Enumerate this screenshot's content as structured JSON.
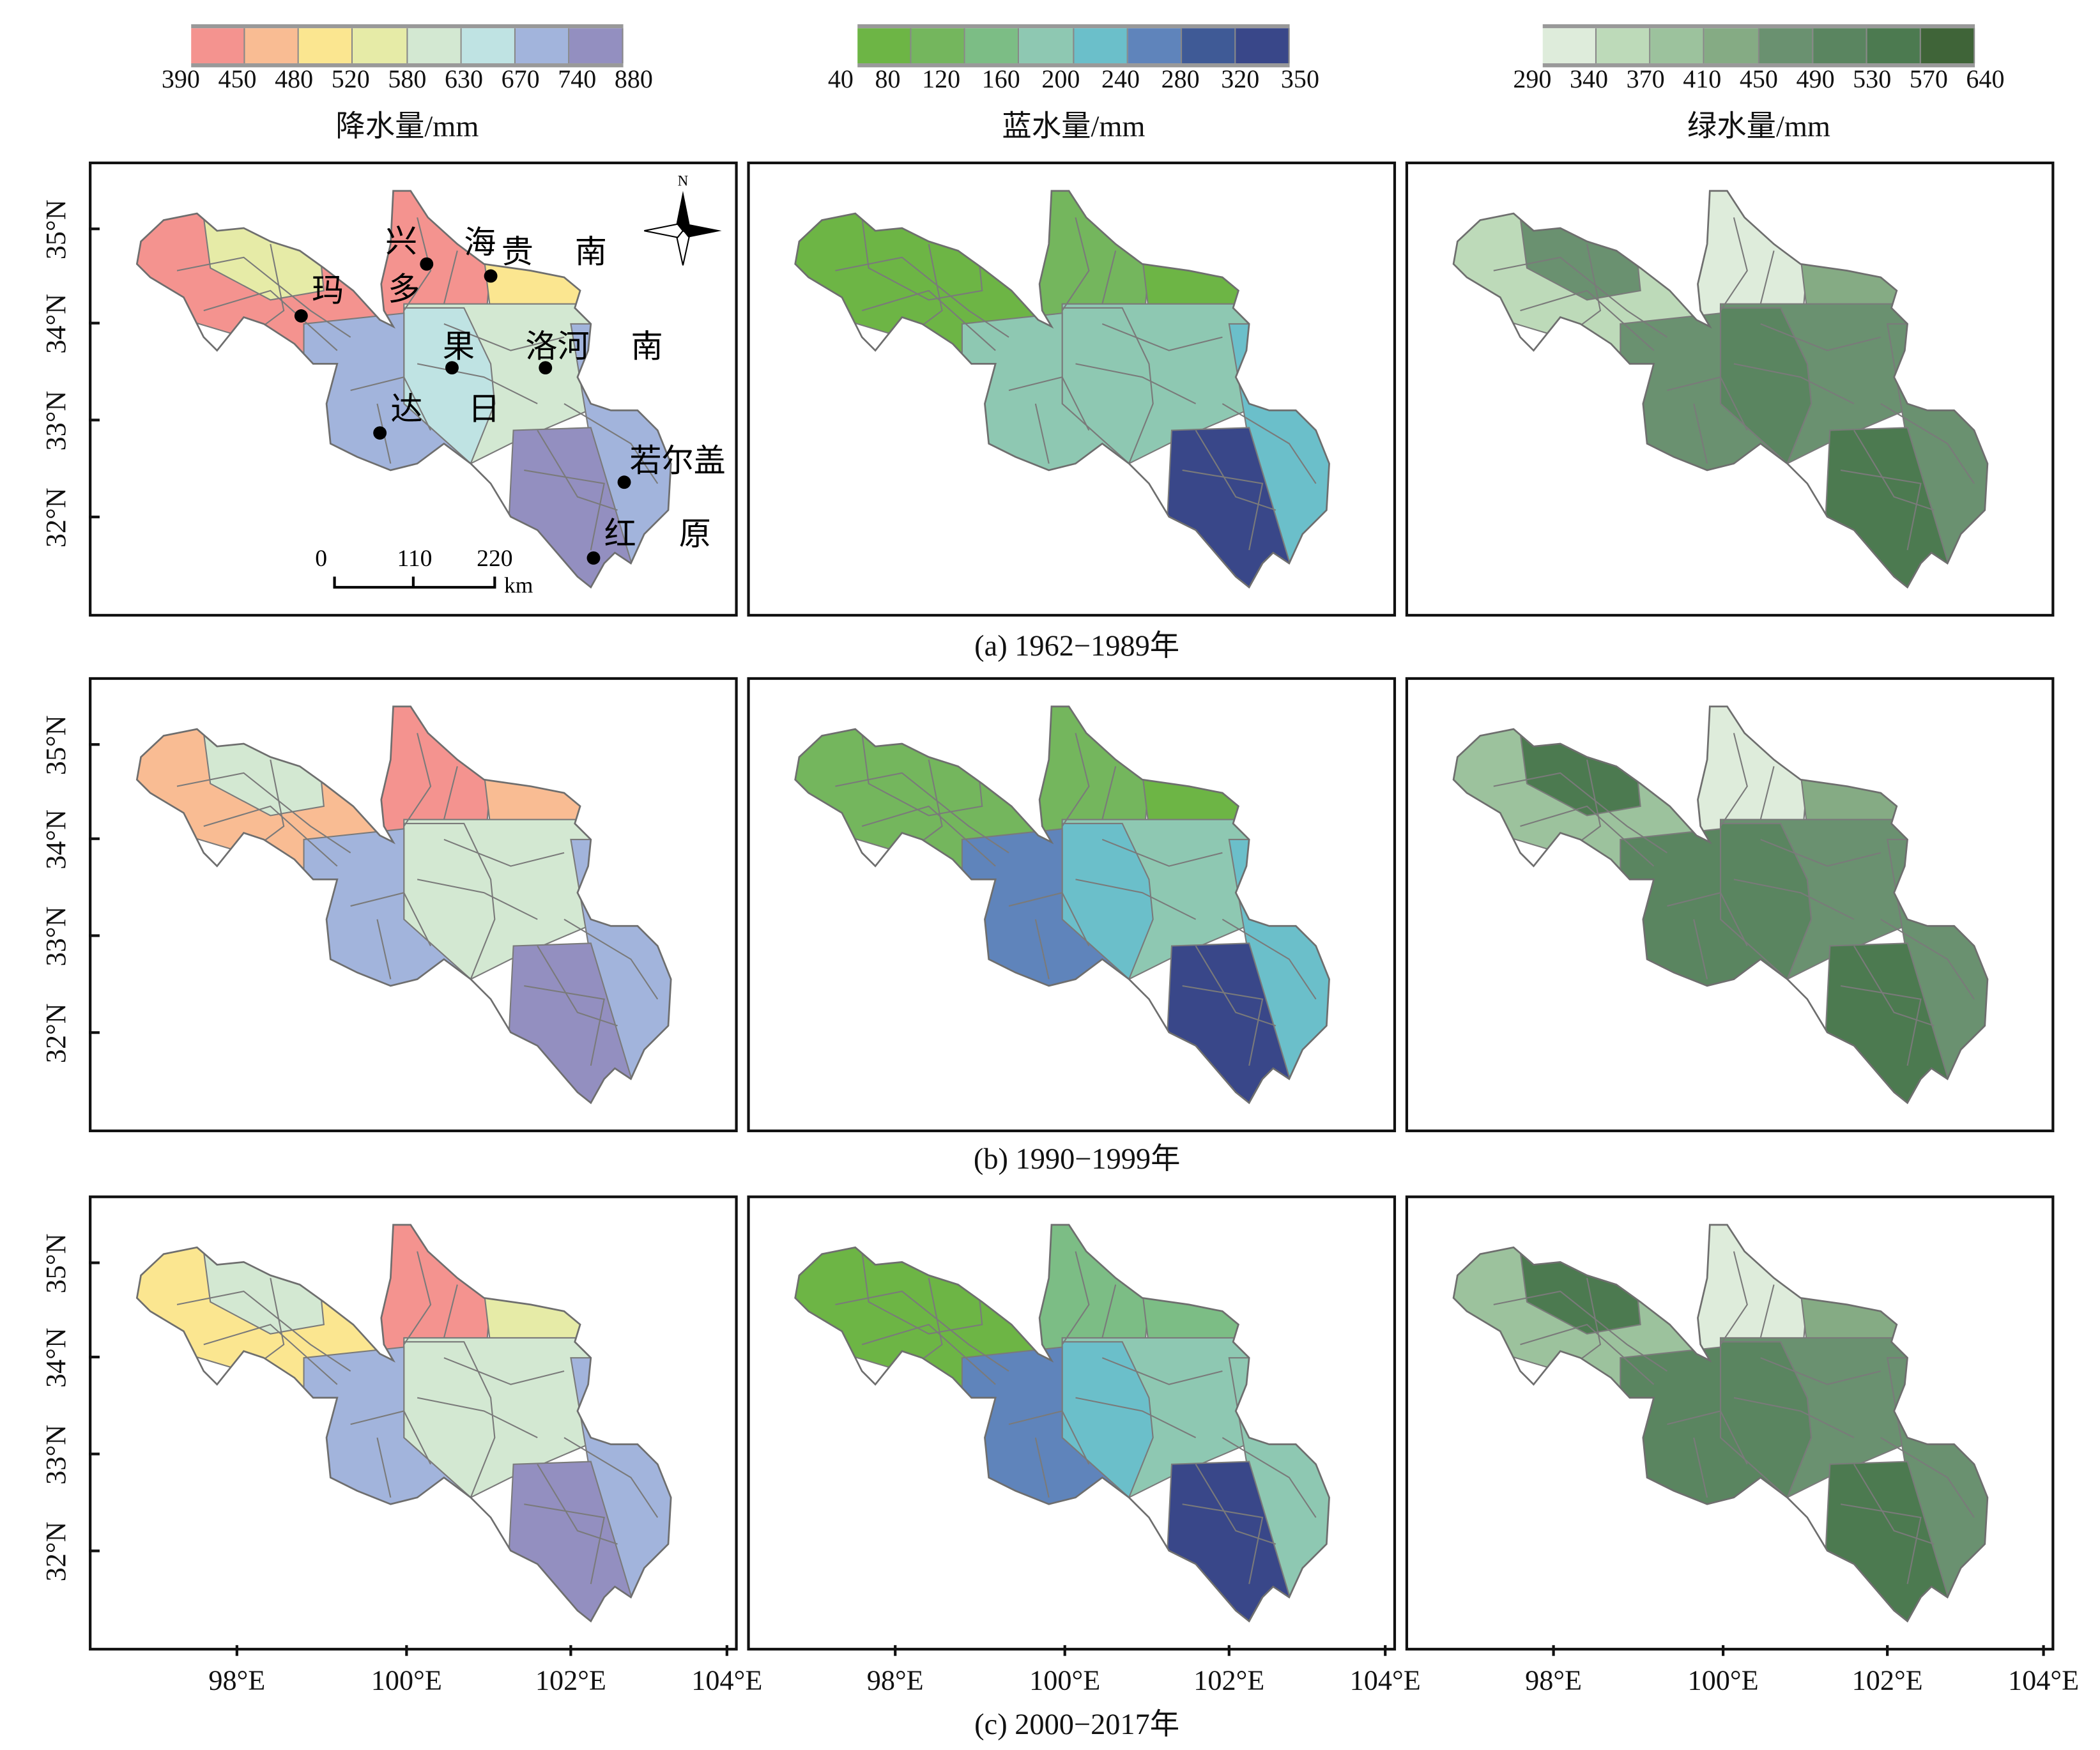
{
  "legends": [
    {
      "title": "降水量/mm",
      "ticks": [
        "390",
        "450",
        "480",
        "520",
        "580",
        "630",
        "670",
        "740",
        "880"
      ],
      "colors": [
        "#f4938f",
        "#f9bc93",
        "#fbe690",
        "#e6eba7",
        "#d3e8d2",
        "#bfe3e3",
        "#a2b4dc",
        "#938fc0"
      ]
    },
    {
      "title": "蓝水量/mm",
      "ticks": [
        "40",
        "80",
        "120",
        "160",
        "200",
        "240",
        "280",
        "320",
        "350"
      ],
      "colors": [
        "#6db545",
        "#74b65d",
        "#7cbd85",
        "#8ec8b2",
        "#6bbfca",
        "#5f84bb",
        "#3f5a96",
        "#394789"
      ]
    },
    {
      "title": "绿水量/mm",
      "ticks": [
        "290",
        "340",
        "370",
        "410",
        "450",
        "490",
        "530",
        "570",
        "640"
      ],
      "colors": [
        "#deecdb",
        "#bddab9",
        "#9cc29d",
        "#85ab84",
        "#6a9170",
        "#5a8560",
        "#4c7a50",
        "#3f6438"
      ]
    }
  ],
  "captions": [
    "(a) 1962−1989年",
    "(b) 1990−1999年",
    "(c) 2000−2017年"
  ],
  "lat_labels": [
    "35°N",
    "34°N",
    "33°N",
    "32°N"
  ],
  "lon_labels": [
    "98°E",
    "100°E",
    "102°E",
    "104°E"
  ],
  "map_labels": {
    "places": [
      "兴",
      "多",
      "海",
      "贵",
      "南",
      "玛",
      "果",
      "洛河",
      "南",
      "达",
      "日",
      "若尔盖",
      "红",
      "原"
    ],
    "north": "N",
    "scale": [
      "0",
      "110",
      "220"
    ],
    "scale_unit": "km"
  },
  "panels": [
    [
      {
        "W": "#f4938f",
        "NWp": "#e6eba7",
        "N": "#f4938f",
        "NE": "#fbe690",
        "C": "#d3e8d2",
        "CW": "#bfe3e3",
        "SW": "#a2b4dc",
        "E": "#a2b4dc",
        "SE": "#938fc0"
      },
      {
        "W": "#6db545",
        "NWp": "#6db545",
        "N": "#74b65d",
        "NE": "#6db545",
        "C": "#8ec8b2",
        "CW": "#8ec8b2",
        "SW": "#8ec8b2",
        "E": "#6bbfca",
        "SE": "#394789"
      },
      {
        "W": "#bddab9",
        "NWp": "#6a9170",
        "N": "#deecdb",
        "NE": "#85ab84",
        "C": "#6a9170",
        "CW": "#5a8560",
        "SW": "#6a9170",
        "E": "#6a9170",
        "SE": "#4c7a50"
      }
    ],
    [
      {
        "W": "#f9bc93",
        "NWp": "#d3e8d2",
        "N": "#f4938f",
        "NE": "#f9bc93",
        "C": "#d3e8d2",
        "CW": "#d3e8d2",
        "SW": "#a2b4dc",
        "E": "#a2b4dc",
        "SE": "#938fc0"
      },
      {
        "W": "#74b65d",
        "NWp": "#74b65d",
        "N": "#74b65d",
        "NE": "#6db545",
        "C": "#8ec8b2",
        "CW": "#6bbfca",
        "SW": "#5f84bb",
        "E": "#6bbfca",
        "SE": "#394789"
      },
      {
        "W": "#9cc29d",
        "NWp": "#4c7a50",
        "N": "#deecdb",
        "NE": "#85ab84",
        "C": "#6a9170",
        "CW": "#5a8560",
        "SW": "#5a8560",
        "E": "#6a9170",
        "SE": "#4c7a50"
      }
    ],
    [
      {
        "W": "#fbe690",
        "NWp": "#d3e8d2",
        "N": "#f4938f",
        "NE": "#e6eba7",
        "C": "#d3e8d2",
        "CW": "#d3e8d2",
        "SW": "#a2b4dc",
        "E": "#a2b4dc",
        "SE": "#938fc0"
      },
      {
        "W": "#6db545",
        "NWp": "#6db545",
        "N": "#7cbd85",
        "NE": "#7cbd85",
        "C": "#8ec8b2",
        "CW": "#6bbfca",
        "SW": "#5f84bb",
        "E": "#8ec8b2",
        "SE": "#394789"
      },
      {
        "W": "#9cc29d",
        "NWp": "#4c7a50",
        "N": "#deecdb",
        "NE": "#85ab84",
        "C": "#6a9170",
        "CW": "#5a8560",
        "SW": "#5a8560",
        "E": "#6a9170",
        "SE": "#4c7a50"
      }
    ]
  ]
}
